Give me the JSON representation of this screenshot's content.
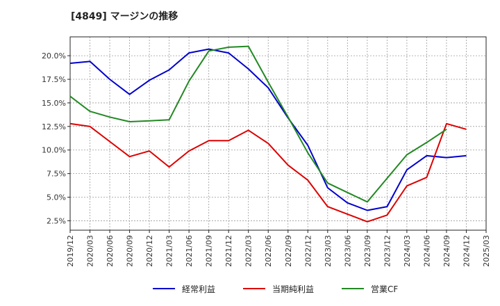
{
  "chart_data": {
    "type": "line",
    "title": "[4849]  マージンの推移",
    "xlabel": "",
    "ylabel": "",
    "x": [
      "2019/12",
      "2020/03",
      "2020/06",
      "2020/09",
      "2020/12",
      "2021/03",
      "2021/06",
      "2021/09",
      "2021/12",
      "2022/03",
      "2022/06",
      "2022/09",
      "2022/12",
      "2023/03",
      "2023/06",
      "2023/09",
      "2023/12",
      "2024/03",
      "2024/06",
      "2024/09",
      "2024/12",
      "2025/03"
    ],
    "ylim": [
      1.5,
      22.0
    ],
    "yticks": [
      2.5,
      5.0,
      7.5,
      10.0,
      12.5,
      15.0,
      17.5,
      20.0
    ],
    "ytick_labels": [
      "2.5%",
      "5.0%",
      "7.5%",
      "10.0%",
      "12.5%",
      "15.0%",
      "17.5%",
      "20.0%"
    ],
    "grid": true,
    "legend_position": "bottom",
    "series": [
      {
        "name": "経常利益",
        "color": "#0000cc",
        "values": [
          19.2,
          19.4,
          17.5,
          15.9,
          17.4,
          18.5,
          20.3,
          20.7,
          20.3,
          18.6,
          16.6,
          13.4,
          10.5,
          6.0,
          4.4,
          3.6,
          4.0,
          7.9,
          9.4,
          9.2,
          9.4,
          null
        ]
      },
      {
        "name": "当期純利益",
        "color": "#dd0000",
        "values": [
          12.8,
          12.5,
          10.9,
          9.3,
          9.9,
          8.2,
          9.9,
          11.0,
          11.0,
          12.1,
          10.7,
          8.4,
          6.8,
          4.0,
          3.2,
          2.4,
          3.1,
          6.2,
          7.1,
          12.8,
          12.2,
          null
        ]
      },
      {
        "name": "営業CF",
        "color": "#228822",
        "values": [
          15.7,
          14.1,
          13.5,
          13.0,
          13.1,
          13.2,
          17.3,
          20.5,
          20.9,
          21.0,
          17.2,
          13.5,
          9.7,
          6.5,
          5.5,
          4.5,
          7.0,
          9.5,
          10.8,
          12.2,
          null,
          null
        ]
      }
    ]
  }
}
